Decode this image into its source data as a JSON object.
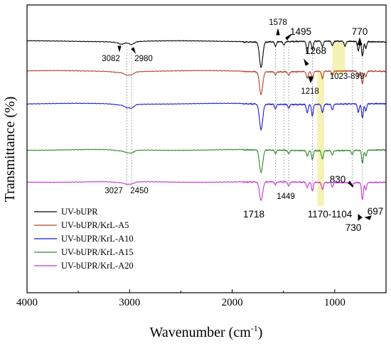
{
  "chart_data": {
    "type": "line",
    "xlabel": "Wavenumber (cm",
    "xlabel_sup": "-1",
    "xlabel_close": ")",
    "ylabel": "Transmittance (%)",
    "xlim": [
      4000,
      500
    ],
    "x_reversed": true,
    "x_ticks": [
      4000,
      3000,
      2000,
      1000
    ],
    "y_ticks_shown": false,
    "legend_position": "bottom-left",
    "series": [
      {
        "name": "UV-bUPR",
        "color": "#000000",
        "peaks": [
          [
            3082,
            2
          ],
          [
            2980,
            3
          ],
          [
            1718,
            36
          ],
          [
            1578,
            6
          ],
          [
            1495,
            5
          ],
          [
            1268,
            16
          ],
          [
            1218,
            12
          ],
          [
            1120,
            8
          ],
          [
            1023,
            6
          ],
          [
            899,
            7
          ],
          [
            770,
            13
          ],
          [
            730,
            20
          ],
          [
            697,
            9
          ]
        ]
      },
      {
        "name": "UV-bUPR/KrL-A5",
        "color": "#b2412a",
        "peaks": [
          [
            3027,
            3
          ],
          [
            2980,
            3
          ],
          [
            1718,
            32
          ],
          [
            1578,
            4
          ],
          [
            1449,
            5
          ],
          [
            1268,
            10
          ],
          [
            1218,
            12
          ],
          [
            1120,
            10
          ],
          [
            1023,
            6
          ],
          [
            770,
            8
          ],
          [
            730,
            18
          ],
          [
            697,
            8
          ]
        ]
      },
      {
        "name": "UV-bUPR/KrL-A10",
        "color": "#1a1adb",
        "peaks": [
          [
            3027,
            3
          ],
          [
            2980,
            4
          ],
          [
            1718,
            36
          ],
          [
            1578,
            6
          ],
          [
            1449,
            5
          ],
          [
            1268,
            12
          ],
          [
            1218,
            16
          ],
          [
            1120,
            12
          ],
          [
            1023,
            8
          ],
          [
            770,
            12
          ],
          [
            730,
            20
          ],
          [
            697,
            10
          ]
        ]
      },
      {
        "name": "UV-bUPR/KrL-A15",
        "color": "#2c8a2a",
        "peaks": [
          [
            3027,
            2
          ],
          [
            2980,
            3
          ],
          [
            1718,
            32
          ],
          [
            1578,
            5
          ],
          [
            1449,
            5
          ],
          [
            1268,
            8
          ],
          [
            1218,
            12
          ],
          [
            1120,
            12
          ],
          [
            1023,
            6
          ],
          [
            830,
            6
          ],
          [
            730,
            18
          ],
          [
            697,
            8
          ]
        ]
      },
      {
        "name": "UV-bUPR/KrL-A20",
        "color": "#c832d8",
        "peaks": [
          [
            3027,
            2
          ],
          [
            2980,
            2
          ],
          [
            1718,
            26
          ],
          [
            1578,
            4
          ],
          [
            1449,
            6
          ],
          [
            1268,
            8
          ],
          [
            1218,
            12
          ],
          [
            1120,
            10
          ],
          [
            1023,
            6
          ],
          [
            830,
            6
          ],
          [
            730,
            24
          ],
          [
            697,
            10
          ]
        ]
      }
    ],
    "peak_annotations": [
      "3082",
      "2980",
      "1578",
      "1495",
      "770",
      "1268",
      "1218",
      "1023-899",
      "3027",
      "2450",
      "1449",
      "1718",
      "1170-1104",
      "830",
      "730",
      "697"
    ],
    "highlight_bands": [
      {
        "range": [
          1170,
          1104
        ],
        "color": "#f3f0a8",
        "label": "1170-1104"
      },
      {
        "range": [
          1023,
          899
        ],
        "color": "#f3f0a8",
        "label": "1023-899"
      }
    ],
    "reference_lines": [
      3027,
      2980,
      1578,
      1495,
      1449,
      1218,
      830,
      730
    ]
  }
}
